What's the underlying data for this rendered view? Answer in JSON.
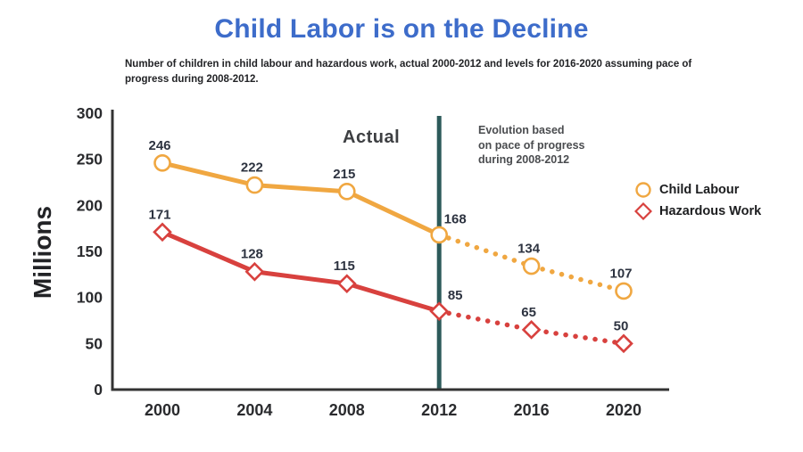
{
  "page": {
    "title": "Child Labor is on the Decline",
    "title_color": "#3D6CCA",
    "subtitle_lines": [
      "Number of children in child labour and hazardous work, actual 2000-2012 and levels for 2016-2020 assuming pace of",
      "progress during 2008-2012."
    ]
  },
  "chart_data": {
    "type": "line",
    "x": [
      2000,
      2004,
      2008,
      2012,
      2016,
      2020
    ],
    "series": [
      {
        "name": "Child Labour",
        "values": [
          246,
          222,
          215,
          168,
          134,
          107
        ],
        "color": "#F0A741",
        "marker": "circle"
      },
      {
        "name": "Hazardous Work",
        "values": [
          171,
          128,
          115,
          85,
          65,
          50
        ],
        "color": "#D8413E",
        "marker": "diamond"
      }
    ],
    "ylabel": "Millions",
    "xlabel": "",
    "ylim": [
      0,
      300
    ],
    "yticks": [
      0,
      50,
      100,
      150,
      200,
      250,
      300
    ],
    "grid": false,
    "solid_until_x": 2012,
    "dotted_from_x": 2012,
    "divider": {
      "x": 2012,
      "color": "#2D5A5A"
    },
    "axis_color": "#333333",
    "tick_label_color": "#2a2b2e",
    "point_label_color": "#2d3340",
    "legend": {
      "position": "right",
      "entries": [
        "Child Labour",
        "Hazardous Work"
      ]
    },
    "annotations": {
      "actual_label": "Actual",
      "evolution_note_lines": [
        "Evolution based",
        "on pace of progress",
        "during 2008-2012"
      ]
    }
  }
}
